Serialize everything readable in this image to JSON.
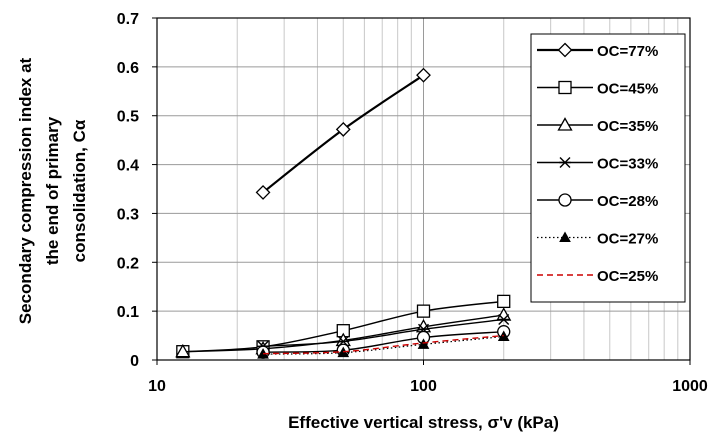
{
  "chart_data": {
    "type": "scatter",
    "xscale": "log",
    "xlim": [
      10,
      1000
    ],
    "ylim": [
      0,
      0.7
    ],
    "xticks": [
      "10",
      "100",
      "1000"
    ],
    "yticks": [
      "0",
      "0.1",
      "0.2",
      "0.3",
      "0.4",
      "0.5",
      "0.6",
      "0.7"
    ],
    "xlabel": "Effective vertical stress, σ'v (kPa)",
    "ylabel": [
      "Secondary compression index at",
      "the end of primary",
      "consolidation, Cα"
    ],
    "grid": true,
    "legend_position": "top-right",
    "series": [
      {
        "name": "OC=77%",
        "marker": "diamond",
        "line": "solid",
        "color": "#000000",
        "x": [
          25,
          50,
          100
        ],
        "y": [
          0.343,
          0.472,
          0.583
        ]
      },
      {
        "name": "OC=45%",
        "marker": "square",
        "line": "solid",
        "color": "#000000",
        "x": [
          12.5,
          25,
          50,
          100,
          200
        ],
        "y": [
          0.017,
          0.027,
          0.06,
          0.1,
          0.12
        ]
      },
      {
        "name": "OC=35%",
        "marker": "triangle",
        "line": "solid",
        "color": "#000000",
        "x": [
          12.5,
          25,
          50,
          100,
          200
        ],
        "y": [
          0.017,
          0.023,
          0.04,
          0.068,
          0.092
        ]
      },
      {
        "name": "OC=33%",
        "marker": "star",
        "line": "solid",
        "color": "#000000",
        "x": [
          25,
          50,
          100,
          200
        ],
        "y": [
          0.028,
          0.038,
          0.063,
          0.083
        ]
      },
      {
        "name": "OC=28%",
        "marker": "circle",
        "line": "solid",
        "color": "#000000",
        "x": [
          25,
          50,
          100,
          200
        ],
        "y": [
          0.016,
          0.02,
          0.046,
          0.058
        ]
      },
      {
        "name": "OC=27%",
        "marker": "filled-triangle",
        "line": "dotted",
        "color": "#000000",
        "x": [
          25,
          50,
          100,
          200
        ],
        "y": [
          0.012,
          0.015,
          0.032,
          0.048
        ]
      },
      {
        "name": "OC=25%",
        "marker": "none",
        "line": "dashed",
        "color": "#cc0000",
        "x": [
          25,
          50,
          100,
          200
        ],
        "y": [
          0.013,
          0.017,
          0.035,
          0.05
        ]
      }
    ]
  }
}
